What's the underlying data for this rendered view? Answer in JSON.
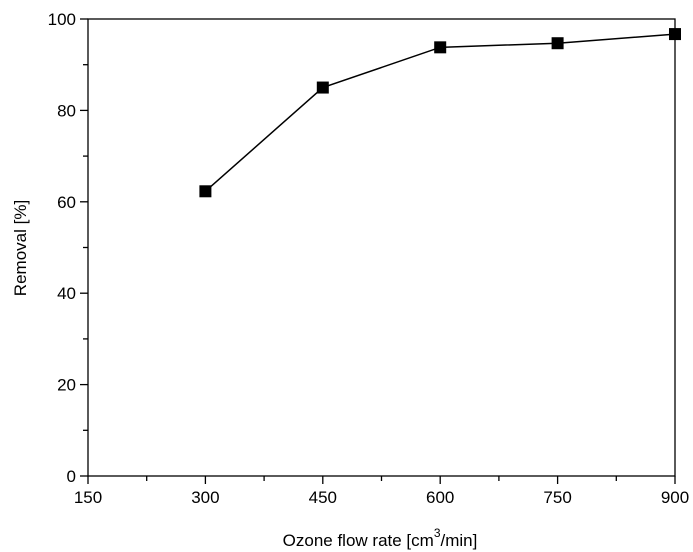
{
  "chart_data": {
    "type": "line",
    "title": "",
    "xlabel": "Ozone flow rate [cm",
    "xlabel_sup": "3",
    "xlabel_suffix": "/min]",
    "ylabel": "Removal [%]",
    "xlim": [
      150,
      900
    ],
    "ylim": [
      0,
      100
    ],
    "xticks": [
      150,
      300,
      450,
      600,
      750,
      900
    ],
    "yticks": [
      0,
      20,
      40,
      60,
      80,
      100
    ],
    "grid": false,
    "legend": "none",
    "series": [
      {
        "x": [
          300,
          450,
          600,
          750,
          900
        ],
        "values": [
          62.3,
          85.0,
          93.8,
          94.7,
          96.7
        ],
        "marker": "square",
        "color": "#000000"
      }
    ]
  }
}
